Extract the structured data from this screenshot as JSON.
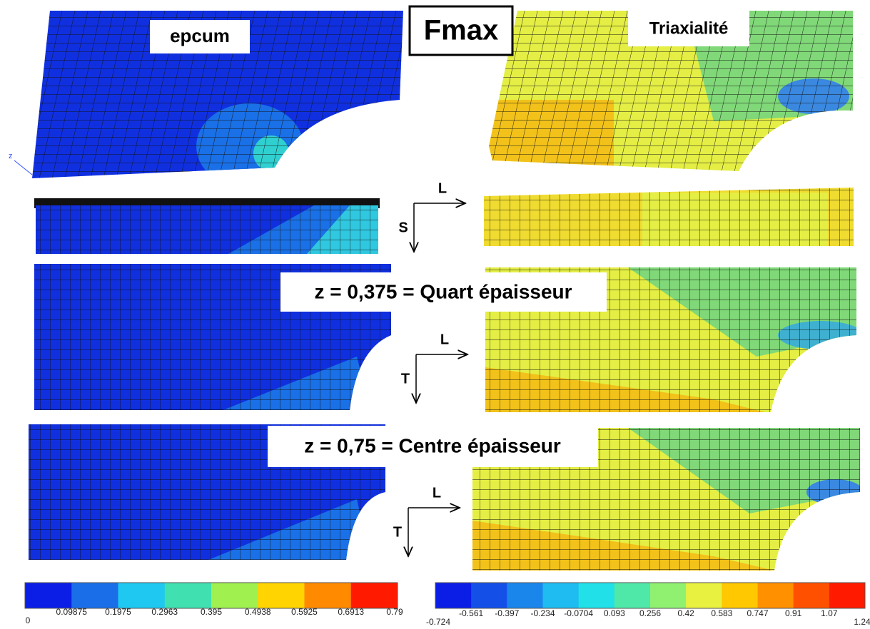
{
  "labels": {
    "left_title": "epcum",
    "center_title": "Fmax",
    "right_title": "Triaxialité",
    "axis_z": "z",
    "quarter": "z = 0,375 = Quart épaisseur",
    "center": "z = 0,75 = Centre épaisseur"
  },
  "axes": [
    {
      "h": "L",
      "v": "S"
    },
    {
      "h": "L",
      "v": "T"
    },
    {
      "h": "L",
      "v": "T"
    }
  ],
  "colorbars": [
    {
      "colors": [
        "#0a1ee6",
        "#1a6ee8",
        "#1ec8f0",
        "#40e0b0",
        "#a0f050",
        "#ffd400",
        "#ff8a00",
        "#ff1a00"
      ],
      "labels": [
        "0",
        "0.09875",
        "0.1975",
        "0.2963",
        "0.395",
        "0.4938",
        "0.5925",
        "0.6913",
        "0.79"
      ]
    },
    {
      "colors": [
        "#0a1ee6",
        "#1450e8",
        "#1a86ec",
        "#1ebcf0",
        "#22e0e8",
        "#50e8a8",
        "#90f070",
        "#e8f040",
        "#ffc800",
        "#ff9000",
        "#ff5000",
        "#ff1a00"
      ],
      "labels": [
        "-0.724",
        "-0.561",
        "-0.397",
        "-0.234",
        "-0.0704",
        "0.093",
        "0.256",
        "0.42",
        "0.583",
        "0.747",
        "0.91",
        "1.07",
        "1.24"
      ]
    }
  ]
}
